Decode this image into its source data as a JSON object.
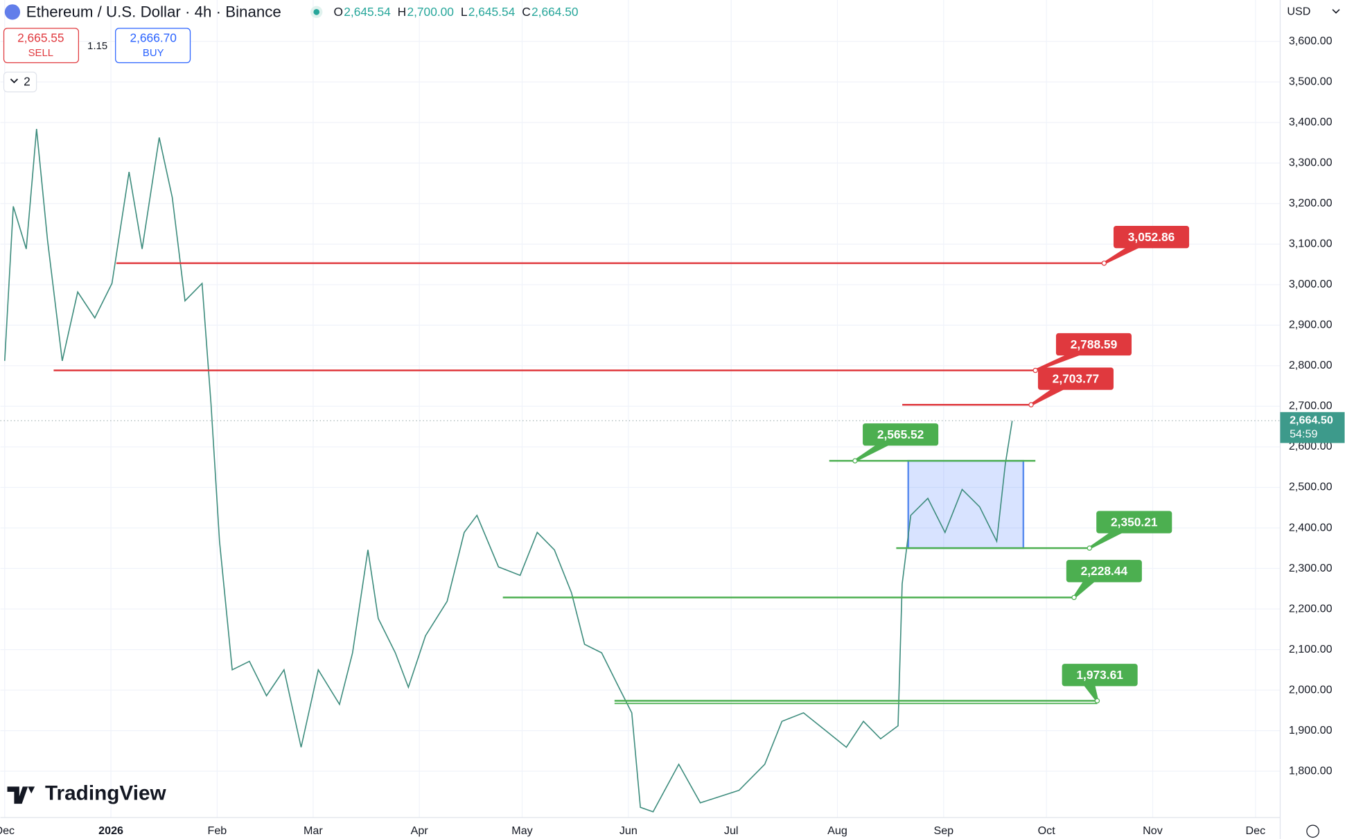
{
  "chart_data": {
    "type": "line",
    "title": "Ethereum / U.S. Dollar · 4h · Binance",
    "ohlc": [
      {
        "key": "O",
        "value": "2,645.54"
      },
      {
        "key": "H",
        "value": "2,700.00"
      },
      {
        "key": "L",
        "value": "2,645.54"
      },
      {
        "key": "C",
        "value": "2,664.50"
      }
    ],
    "sell": {
      "price": "2,665.55",
      "label": "SELL"
    },
    "spread": "1.15",
    "buy": {
      "price": "2,666.70",
      "label": "BUY"
    },
    "indicator_count": "2",
    "currency": "USD",
    "brand": "TradingView",
    "last_price": {
      "value": 2664.5,
      "label": "2,664.50",
      "countdown": "54:59"
    },
    "x": [
      0,
      2.5,
      6.3,
      9.3,
      12.5,
      16.8,
      21.3,
      26.3,
      31.3,
      36.3,
      40.1,
      45.1,
      48.9,
      52.6,
      57.6,
      60.2,
      62.7,
      66.4,
      71.4,
      76.4,
      81.5,
      86.5,
      91.5,
      97.7,
      101.5,
      106,
      109,
      114,
      117.8,
      122.8,
      129.1,
      134.1,
      137.8,
      144.1,
      150.4,
      155.4,
      160.4,
      165.4,
      169.2,
      174.2,
      179.2,
      183,
      185.5,
      189.2,
      196.7,
      203,
      214.3,
      221.8,
      226.8,
      233.1,
      239.3,
      245.6,
      250.6,
      255.6,
      260.7,
      261.9,
      264.4,
      269.4,
      274.4,
      279.4,
      284.5,
      289.5,
      292,
      294
    ],
    "series": [
      {
        "name": "ETHUSD",
        "color": "#3d8c7d",
        "values": [
          2812,
          3193,
          3088,
          3384,
          3109,
          2812,
          2982,
          2918,
          3003,
          3278,
          3088,
          3363,
          3215,
          2960,
          3003,
          2706,
          2367,
          2050,
          2071,
          1986,
          2050,
          1859,
          2050,
          1965,
          2092,
          2346,
          2177,
          2092,
          2007,
          2134,
          2219,
          2389,
          2431,
          2304,
          2283,
          2389,
          2346,
          2240,
          2113,
          2092,
          2007,
          1944,
          1711,
          1700,
          1817,
          1722,
          1753,
          1817,
          1923,
          1944,
          1902,
          1859,
          1923,
          1880,
          1912,
          2262,
          2431,
          2473,
          2389,
          2495,
          2452,
          2367,
          2558,
          2664
        ]
      }
    ],
    "levels": [
      {
        "value": 3052.86,
        "label": "3,052.86",
        "color": "#e0393e"
      },
      {
        "value": 2788.59,
        "label": "2,788.59",
        "color": "#e0393e"
      },
      {
        "value": 2703.77,
        "label": "2,703.77",
        "color": "#e0393e"
      },
      {
        "value": 2565.52,
        "label": "2,565.52",
        "color": "#4caf50"
      },
      {
        "value": 2350.21,
        "label": "2,350.21",
        "color": "#4caf50"
      },
      {
        "value": 2228.44,
        "label": "2,228.44",
        "color": "#4caf50"
      },
      {
        "value": 1973.61,
        "label": "1,973.61",
        "color": "#4caf50"
      }
    ],
    "xlim": [
      -1.25,
      372.2
    ],
    "xticks": [
      {
        "value": 0,
        "label": "Dec"
      },
      {
        "value": 31,
        "label": "2026"
      },
      {
        "value": 62,
        "label": "Feb"
      },
      {
        "value": 90,
        "label": "Mar"
      },
      {
        "value": 121,
        "label": "Apr"
      },
      {
        "value": 151,
        "label": "May"
      },
      {
        "value": 182,
        "label": "Jun"
      },
      {
        "value": 212,
        "label": "Jul"
      },
      {
        "value": 243,
        "label": "Aug"
      },
      {
        "value": 274,
        "label": "Sep"
      },
      {
        "value": 304,
        "label": "Oct"
      },
      {
        "value": 335,
        "label": "Nov"
      },
      {
        "value": 365,
        "label": "Dec"
      }
    ],
    "ylim": [
      1690,
      3702
    ],
    "yticks": [
      {
        "value": 1800,
        "label": "1,800.00"
      },
      {
        "value": 1900,
        "label": "1,900.00"
      },
      {
        "value": 2000,
        "label": "2,000.00"
      },
      {
        "value": 2100,
        "label": "2,100.00"
      },
      {
        "value": 2200,
        "label": "2,200.00"
      },
      {
        "value": 2300,
        "label": "2,300.00"
      },
      {
        "value": 2400,
        "label": "2,400.00"
      },
      {
        "value": 2500,
        "label": "2,500.00"
      },
      {
        "value": 2600,
        "label": "2,600.00"
      },
      {
        "value": 2700,
        "label": "2,700.00"
      },
      {
        "value": 2800,
        "label": "2,800.00"
      },
      {
        "value": 2900,
        "label": "2,900.00"
      },
      {
        "value": 3000,
        "label": "3,000.00"
      },
      {
        "value": 3100,
        "label": "3,100.00"
      },
      {
        "value": 3200,
        "label": "3,200.00"
      },
      {
        "value": 3300,
        "label": "3,300.00"
      },
      {
        "value": 3400,
        "label": "3,400.00"
      },
      {
        "value": 3500,
        "label": "3,500.00"
      },
      {
        "value": 3600,
        "label": "3,600.00"
      }
    ],
    "grid": true
  }
}
